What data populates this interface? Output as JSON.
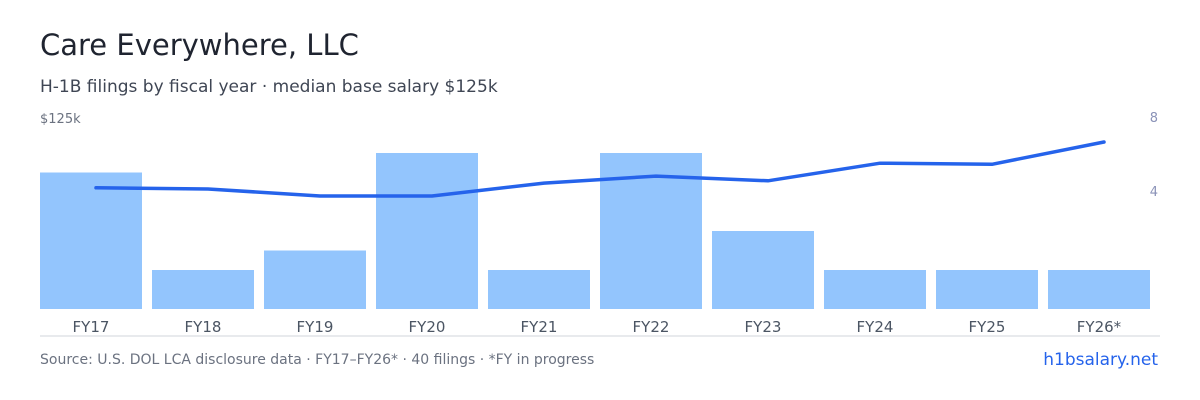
{
  "title": "Care Everywhere, LLC",
  "subtitle": "H-1B filings by fiscal year · median base salary $125k",
  "left_axis_label": "$125k",
  "footer": {
    "source": "Source: U.S. DOL LCA disclosure data · FY17–FY26* · 40 filings · *FY in progress",
    "site": "h1bsalary.net"
  },
  "colors": {
    "bar": "#93c5fd",
    "line": "#2563eb",
    "axis_text": "#6b7280",
    "right_axis_text": "#8b93b8",
    "baseline": "#d1d5db"
  },
  "chart_data": {
    "type": "bar",
    "categories": [
      "FY17",
      "FY18",
      "FY19",
      "FY20",
      "FY21",
      "FY22",
      "FY23",
      "FY24",
      "FY25",
      "FY26*"
    ],
    "series": [
      {
        "type": "bar",
        "axis": "right",
        "values": [
          7,
          2,
          3,
          8,
          2,
          8,
          4,
          2,
          2,
          2
        ]
      },
      {
        "type": "line",
        "axis": "left",
        "values": [
          121,
          120,
          114,
          114,
          125,
          131,
          127,
          142,
          141,
          160
        ]
      }
    ],
    "right_axis": {
      "ticks": [
        4,
        8
      ],
      "range": [
        0,
        8
      ]
    },
    "left_axis": {
      "label": "$125k",
      "range": [
        0,
        160
      ]
    }
  }
}
